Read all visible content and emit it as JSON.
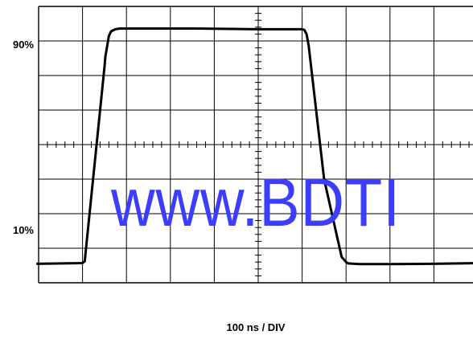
{
  "chart_data": {
    "type": "line",
    "title": "",
    "xlabel": "100 ns / DIV",
    "ylabel": "",
    "x_divisions": 10,
    "y_divisions": 8,
    "xlim": [
      0,
      10
    ],
    "ylim": [
      0,
      8
    ],
    "y_reference_labels": [
      {
        "label": "90%",
        "value": 7
      },
      {
        "label": "10%",
        "value": 1
      }
    ],
    "grid": true,
    "series": [
      {
        "x": [
          -0.05,
          1.0,
          1.05,
          1.5,
          1.52,
          1.6,
          1.65,
          1.75,
          1.85,
          2.0,
          3.5,
          5.0,
          6.0,
          6.05,
          6.1,
          6.15,
          6.5,
          6.9,
          7.0,
          7.05,
          7.3,
          8.0,
          9.0,
          10.0
        ],
        "y": [
          0.55,
          0.57,
          0.62,
          6.25,
          6.55,
          7.15,
          7.28,
          7.34,
          7.36,
          7.36,
          7.36,
          7.34,
          7.34,
          7.32,
          7.2,
          6.85,
          3.0,
          0.75,
          0.6,
          0.56,
          0.54,
          0.54,
          0.55,
          0.57
        ]
      }
    ]
  },
  "watermark": "www.BDTI"
}
